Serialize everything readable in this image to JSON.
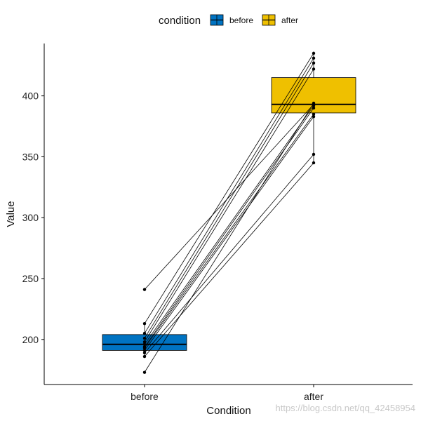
{
  "chart_data": {
    "type": "box",
    "xlabel": "Condition",
    "ylabel": "Value",
    "categories": [
      "before",
      "after"
    ],
    "ylim": [
      163,
      443
    ],
    "yticks": [
      200,
      250,
      300,
      350,
      400
    ],
    "legend": {
      "title": "condition",
      "position": "top",
      "entries": [
        {
          "label": "before",
          "color": "#0073C2"
        },
        {
          "label": "after",
          "color": "#EFC000"
        }
      ]
    },
    "boxes": [
      {
        "category": "before",
        "q1": 191,
        "median": 196,
        "q3": 204,
        "whisker_low": 186,
        "whisker_high": 213,
        "color": "#0073C2"
      },
      {
        "category": "after",
        "q1": 386,
        "median": 393,
        "q3": 415,
        "whisker_low": 345,
        "whisker_high": 435,
        "color": "#EFC000"
      }
    ],
    "pairs": [
      {
        "before": 241,
        "after": 393
      },
      {
        "before": 213,
        "after": 435
      },
      {
        "before": 205,
        "after": 431
      },
      {
        "before": 201,
        "after": 427
      },
      {
        "before": 198,
        "after": 422
      },
      {
        "before": 196,
        "after": 392
      },
      {
        "before": 194,
        "after": 390
      },
      {
        "before": 193,
        "after": 385
      },
      {
        "before": 191,
        "after": 383
      },
      {
        "before": 189,
        "after": 352
      },
      {
        "before": 186,
        "after": 345
      },
      {
        "before": 173,
        "after": 394
      }
    ],
    "grid": false
  },
  "watermark": "https://blog.csdn.net/qq_42458954"
}
